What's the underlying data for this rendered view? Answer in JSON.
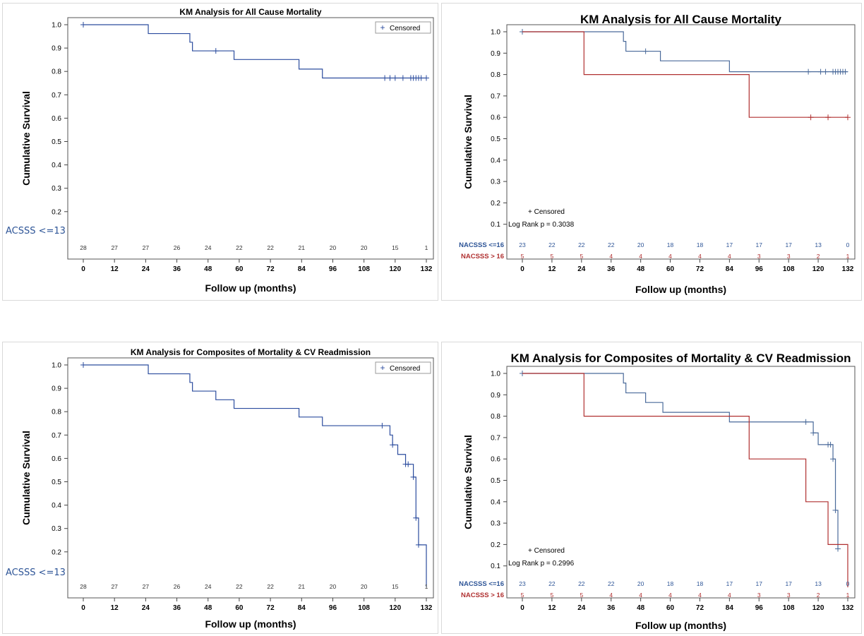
{
  "chart_data": [
    {
      "type": "line",
      "style": "step",
      "title": "KM Analysis for All Cause Mortality",
      "xlabel": "Follow up (months)",
      "ylabel": "Cumulative Survival",
      "xlim": [
        0,
        132
      ],
      "ylim": [
        0.1,
        1.0
      ],
      "xticks": [
        "0",
        "12",
        "24",
        "36",
        "48",
        "60",
        "72",
        "84",
        "96",
        "108",
        "120",
        "132"
      ],
      "yticks": [
        "1.0",
        "0.9",
        "0.8",
        "0.7",
        "0.6",
        "0.5",
        "0.4",
        "0.3",
        "0.2"
      ],
      "legend": {
        "text": "Censored",
        "symbol": "+",
        "position": "top-right"
      },
      "risk_table": {
        "label": "ACSSS <=13",
        "rows": [
          {
            "name": "",
            "values": [
              "28",
              "27",
              "27",
              "26",
              "24",
              "22",
              "22",
              "21",
              "20",
              "20",
              "15",
              "1"
            ],
            "color": "#333333"
          }
        ]
      },
      "series": [
        {
          "name": "",
          "color": "#2b4c9e",
          "steps": [
            [
              0,
              1.0
            ],
            [
              25,
              0.962
            ],
            [
              41,
              0.925
            ],
            [
              42,
              0.888
            ],
            [
              58,
              0.851
            ],
            [
              83,
              0.81
            ],
            [
              92,
              0.772
            ],
            [
              132,
              0.772
            ]
          ],
          "censored": [
            [
              0,
              1.0
            ],
            [
              51,
              0.888
            ],
            [
              116,
              0.772
            ],
            [
              118,
              0.772
            ],
            [
              120,
              0.772
            ],
            [
              123,
              0.772
            ],
            [
              126,
              0.772
            ],
            [
              127,
              0.772
            ],
            [
              128,
              0.772
            ],
            [
              129,
              0.772
            ],
            [
              130,
              0.772
            ],
            [
              132,
              0.772
            ]
          ]
        }
      ]
    },
    {
      "type": "line",
      "style": "step",
      "title": "KM Analysis for All Cause Mortality",
      "xlabel": "Follow up (months)",
      "ylabel": "Cumulative Survival",
      "xlim": [
        0,
        132
      ],
      "ylim": [
        0.1,
        1.0
      ],
      "xticks": [
        "0",
        "12",
        "24",
        "36",
        "48",
        "60",
        "72",
        "84",
        "96",
        "108",
        "120",
        "132"
      ],
      "yticks": [
        "1.0",
        "0.9",
        "0.8",
        "0.7",
        "0.6",
        "0.5",
        "0.4",
        "0.3",
        "0.2",
        "0.1"
      ],
      "legend": {
        "text": "+ Censored",
        "stat": "Log Rank p = 0.3038",
        "position": "bottom-left"
      },
      "risk_table": {
        "label": "",
        "rows": [
          {
            "name": "NACSSS <=16",
            "values": [
              "23",
              "22",
              "22",
              "22",
              "20",
              "18",
              "18",
              "17",
              "17",
              "17",
              "13",
              "0"
            ],
            "color": "#2e5597"
          },
          {
            "name": "NACSSS > 16",
            "values": [
              "5",
              "5",
              "5",
              "4",
              "4",
              "4",
              "4",
              "4",
              "3",
              "3",
              "2",
              "1"
            ],
            "color": "#b03030"
          }
        ]
      },
      "series": [
        {
          "name": "NACSSS <=16",
          "color": "#4a6a9a",
          "steps": [
            [
              0,
              1.0
            ],
            [
              41,
              0.955
            ],
            [
              42,
              0.909
            ],
            [
              51,
              0.909
            ],
            [
              56,
              0.864
            ],
            [
              84,
              0.813
            ],
            [
              132,
              0.813
            ]
          ],
          "censored": [
            [
              0,
              1.0
            ],
            [
              50,
              0.909
            ],
            [
              116,
              0.813
            ],
            [
              121,
              0.813
            ],
            [
              123,
              0.813
            ],
            [
              126,
              0.813
            ],
            [
              127,
              0.813
            ],
            [
              128,
              0.813
            ],
            [
              129,
              0.813
            ],
            [
              130,
              0.813
            ],
            [
              131,
              0.813
            ]
          ]
        },
        {
          "name": "NACSSS > 16",
          "color": "#b03030",
          "steps": [
            [
              0,
              1.0
            ],
            [
              25,
              0.8
            ],
            [
              92,
              0.6
            ],
            [
              132,
              0.6
            ]
          ],
          "censored": [
            [
              117,
              0.6
            ],
            [
              124,
              0.6
            ],
            [
              132,
              0.6
            ]
          ]
        }
      ]
    },
    {
      "type": "line",
      "style": "step",
      "title": "KM Analysis for Composites of Mortality & CV Readmission",
      "xlabel": "Follow up (months)",
      "ylabel": "Cumulative Survival",
      "xlim": [
        0,
        132
      ],
      "ylim": [
        0.1,
        1.0
      ],
      "xticks": [
        "0",
        "12",
        "24",
        "36",
        "48",
        "60",
        "72",
        "84",
        "96",
        "108",
        "120",
        "132"
      ],
      "yticks": [
        "1.0",
        "0.9",
        "0.8",
        "0.7",
        "0.6",
        "0.5",
        "0.4",
        "0.3",
        "0.2"
      ],
      "legend": {
        "text": "Censored",
        "symbol": "+",
        "position": "top-right"
      },
      "risk_table": {
        "label": "ACSSS <=13",
        "rows": [
          {
            "name": "",
            "values": [
              "28",
              "27",
              "27",
              "26",
              "24",
              "22",
              "22",
              "21",
              "20",
              "20",
              "15",
              "1"
            ],
            "color": "#333333"
          }
        ]
      },
      "series": [
        {
          "name": "",
          "color": "#2b4c9e",
          "steps": [
            [
              0,
              1.0
            ],
            [
              25,
              0.962
            ],
            [
              41,
              0.925
            ],
            [
              42,
              0.888
            ],
            [
              51,
              0.851
            ],
            [
              58,
              0.814
            ],
            [
              83,
              0.777
            ],
            [
              92,
              0.74
            ],
            [
              117,
              0.74
            ],
            [
              118,
              0.7
            ],
            [
              119,
              0.658
            ],
            [
              121,
              0.617
            ],
            [
              124,
              0.575
            ],
            [
              126,
              0.575
            ],
            [
              127,
              0.52
            ],
            [
              128,
              0.345
            ],
            [
              129,
              0.23
            ],
            [
              132,
              0.23
            ],
            [
              132,
              0.05
            ]
          ],
          "censored": [
            [
              0,
              1.0
            ],
            [
              115,
              0.74
            ],
            [
              119,
              0.658
            ],
            [
              124,
              0.575
            ],
            [
              125,
              0.575
            ],
            [
              127,
              0.52
            ],
            [
              128,
              0.345
            ],
            [
              129,
              0.23
            ]
          ]
        }
      ]
    },
    {
      "type": "line",
      "style": "step",
      "title": "KM Analysis for Composites of Mortality & CV Readmission",
      "xlabel": "Follow up (months)",
      "ylabel": "Cumulative Survival",
      "xlim": [
        0,
        132
      ],
      "ylim": [
        0.1,
        1.0
      ],
      "xticks": [
        "0",
        "12",
        "24",
        "36",
        "48",
        "60",
        "72",
        "84",
        "96",
        "108",
        "120",
        "132"
      ],
      "yticks": [
        "1.0",
        "0.9",
        "0.8",
        "0.7",
        "0.6",
        "0.5",
        "0.4",
        "0.3",
        "0.2",
        "0.1"
      ],
      "legend": {
        "text": "+ Censored",
        "stat": "Log Rank p = 0.2996",
        "position": "bottom-left"
      },
      "risk_table": {
        "label": "",
        "rows": [
          {
            "name": "NACSSS <=16",
            "values": [
              "23",
              "22",
              "22",
              "22",
              "20",
              "18",
              "18",
              "17",
              "17",
              "17",
              "13",
              "0"
            ],
            "color": "#2e5597"
          },
          {
            "name": "NACSSS > 16",
            "values": [
              "5",
              "5",
              "5",
              "4",
              "4",
              "4",
              "4",
              "4",
              "3",
              "3",
              "2",
              "1"
            ],
            "color": "#b03030"
          }
        ]
      },
      "series": [
        {
          "name": "NACSSS <=16",
          "color": "#4a6a9a",
          "steps": [
            [
              0,
              1.0
            ],
            [
              41,
              0.955
            ],
            [
              42,
              0.909
            ],
            [
              50,
              0.864
            ],
            [
              57,
              0.818
            ],
            [
              84,
              0.773
            ],
            [
              116,
              0.773
            ],
            [
              118,
              0.722
            ],
            [
              120,
              0.667
            ],
            [
              126,
              0.6
            ],
            [
              127,
              0.36
            ],
            [
              128,
              0.18
            ],
            [
              128,
              0.18
            ]
          ],
          "censored": [
            [
              0,
              1.0
            ],
            [
              115,
              0.773
            ],
            [
              118,
              0.722
            ],
            [
              124,
              0.667
            ],
            [
              125,
              0.667
            ],
            [
              126,
              0.6
            ],
            [
              127,
              0.36
            ],
            [
              128,
              0.18
            ]
          ]
        },
        {
          "name": "NACSSS > 16",
          "color": "#b03030",
          "steps": [
            [
              0,
              1.0
            ],
            [
              25,
              0.8
            ],
            [
              92,
              0.6
            ],
            [
              115,
              0.4
            ],
            [
              124,
              0.2
            ],
            [
              132,
              0.2
            ],
            [
              132,
              0.0
            ]
          ],
          "censored": []
        }
      ]
    }
  ]
}
